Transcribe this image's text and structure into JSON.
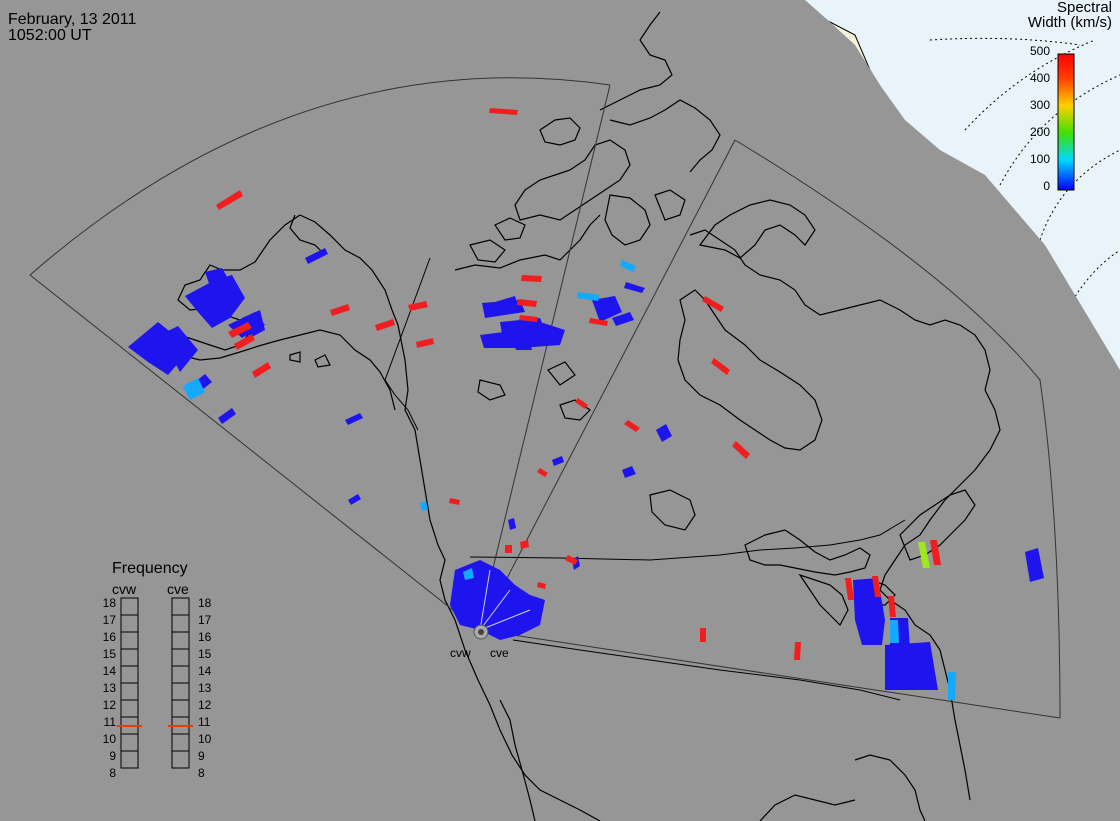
{
  "title": {
    "date": "February, 13 2011",
    "time": "1052:00 UT"
  },
  "colorbar": {
    "title_line1": "Spectral",
    "title_line2": "Width (km/s)",
    "ticks": [
      "500",
      "400",
      "300",
      "200",
      "100",
      "0"
    ],
    "colors": [
      "#ff0000",
      "#ff8000",
      "#ffe000",
      "#00e000",
      "#00e0ff",
      "#0000ff"
    ]
  },
  "frequency": {
    "title": "Frequency",
    "radars": [
      "cvw",
      "cve"
    ],
    "scale": [
      "18",
      "17",
      "16",
      "15",
      "14",
      "13",
      "12",
      "11",
      "10",
      "9",
      "8"
    ],
    "values_mhz": [
      10.5,
      10.5
    ],
    "marker_color": "#e0400a"
  },
  "radar_labels": [
    "cvw",
    "cve"
  ],
  "colors": {
    "background_gray": "#969696",
    "ocean_pale": "#e8f4fa",
    "land_pale": "#f5f2dc",
    "scatter_blue": "#1e14ee",
    "scatter_red": "#f01e1e",
    "scatter_cyan": "#14c8ff",
    "scatter_green": "#a0e81e"
  }
}
